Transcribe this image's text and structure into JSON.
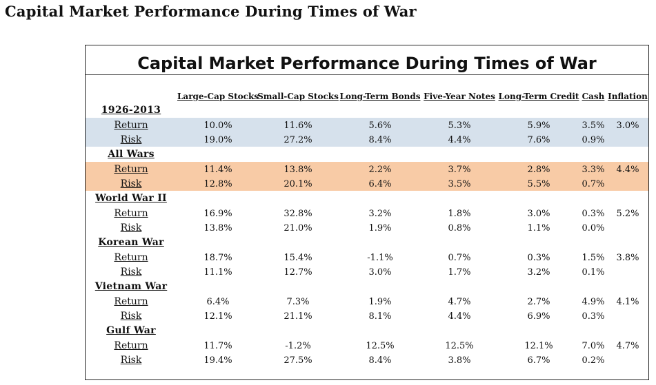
{
  "page_title": "Capital Market Performance During Times of War",
  "chart_data": {
    "type": "table",
    "title": "Capital Market Performance During Times of War",
    "columns": [
      "Large-Cap Stocks",
      "Small-Cap Stocks",
      "Long-Term Bonds",
      "Five-Year Notes",
      "Long-Term Credit",
      "Cash",
      "Inflation"
    ],
    "groups": [
      {
        "name": "1926-2013",
        "highlight": "#d6e1ec",
        "rows": [
          {
            "label": "Return",
            "values": [
              "10.0%",
              "11.6%",
              "5.6%",
              "5.3%",
              "5.9%",
              "3.5%",
              "3.0%"
            ]
          },
          {
            "label": "Risk",
            "values": [
              "19.0%",
              "27.2%",
              "8.4%",
              "4.4%",
              "7.6%",
              "0.9%",
              ""
            ]
          }
        ]
      },
      {
        "name": "All Wars",
        "highlight": "#f8cba6",
        "rows": [
          {
            "label": "Return",
            "values": [
              "11.4%",
              "13.8%",
              "2.2%",
              "3.7%",
              "2.8%",
              "3.3%",
              "4.4%"
            ]
          },
          {
            "label": "Risk",
            "values": [
              "12.8%",
              "20.1%",
              "6.4%",
              "3.5%",
              "5.5%",
              "0.7%",
              ""
            ]
          }
        ]
      },
      {
        "name": "World War II",
        "highlight": "",
        "rows": [
          {
            "label": "Return",
            "values": [
              "16.9%",
              "32.8%",
              "3.2%",
              "1.8%",
              "3.0%",
              "0.3%",
              "5.2%"
            ]
          },
          {
            "label": "Risk",
            "values": [
              "13.8%",
              "21.0%",
              "1.9%",
              "0.8%",
              "1.1%",
              "0.0%",
              ""
            ]
          }
        ]
      },
      {
        "name": "Korean War",
        "highlight": "",
        "rows": [
          {
            "label": "Return",
            "values": [
              "18.7%",
              "15.4%",
              "-1.1%",
              "0.7%",
              "0.3%",
              "1.5%",
              "3.8%"
            ]
          },
          {
            "label": "Risk",
            "values": [
              "11.1%",
              "12.7%",
              "3.0%",
              "1.7%",
              "3.2%",
              "0.1%",
              ""
            ]
          }
        ]
      },
      {
        "name": "Vietnam War",
        "highlight": "",
        "rows": [
          {
            "label": "Return",
            "values": [
              "6.4%",
              "7.3%",
              "1.9%",
              "4.7%",
              "2.7%",
              "4.9%",
              "4.1%"
            ]
          },
          {
            "label": "Risk",
            "values": [
              "12.1%",
              "21.1%",
              "8.1%",
              "4.4%",
              "6.9%",
              "0.3%",
              ""
            ]
          }
        ]
      },
      {
        "name": "Gulf War",
        "highlight": "",
        "rows": [
          {
            "label": "Return",
            "values": [
              "11.7%",
              "-1.2%",
              "12.5%",
              "12.5%",
              "12.1%",
              "7.0%",
              "4.7%"
            ]
          },
          {
            "label": "Risk",
            "values": [
              "19.4%",
              "27.5%",
              "8.4%",
              "3.8%",
              "6.7%",
              "0.2%",
              ""
            ]
          }
        ]
      }
    ]
  }
}
